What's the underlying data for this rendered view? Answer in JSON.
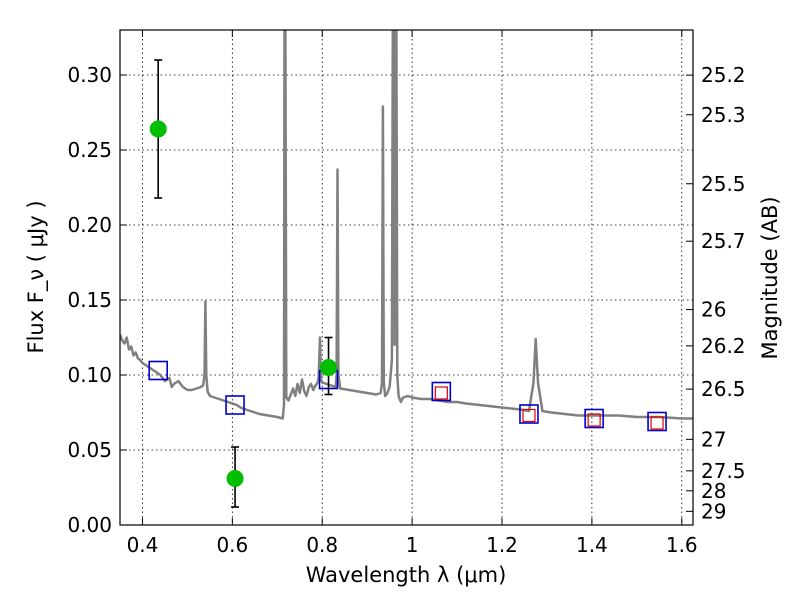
{
  "chart_data": {
    "type": "scatter",
    "xlabel": "Wavelength  λ (μm)",
    "ylabel": "Flux  F_ν  ( μJy )",
    "y2label": "Magnitude (AB)",
    "xlim": [
      0.35,
      1.625
    ],
    "ylim": [
      0.0,
      0.33
    ],
    "grid": true,
    "x_ticks": [
      0.4,
      0.6,
      0.8,
      1.0,
      1.2,
      1.4,
      1.6
    ],
    "x_tick_labels": [
      "0.4",
      "0.6",
      "0.8",
      "1",
      "1.2",
      "1.4",
      "1.6"
    ],
    "y_ticks": [
      0.0,
      0.05,
      0.1,
      0.15,
      0.2,
      0.25,
      0.3
    ],
    "y_tick_labels": [
      "0.00",
      "0.05",
      "0.10",
      "0.15",
      "0.20",
      "0.25",
      "0.30"
    ],
    "mag_ticks": [
      {
        "label": "25.2",
        "flux": 0.2999
      },
      {
        "label": "25.3",
        "flux": 0.2735
      },
      {
        "label": "25.5",
        "flux": 0.2275
      },
      {
        "label": "25.7",
        "flux": 0.1892
      },
      {
        "label": "26",
        "flux": 0.1436
      },
      {
        "label": "26.2",
        "flux": 0.1194
      },
      {
        "label": "26.5",
        "flux": 0.0906
      },
      {
        "label": "27",
        "flux": 0.0571
      },
      {
        "label": "27.5",
        "flux": 0.0361
      },
      {
        "label": "28",
        "flux": 0.0228
      },
      {
        "label": "29",
        "flux": 0.0091
      }
    ],
    "series": [
      {
        "kind": "sed-model-line",
        "color": "#808080",
        "points": [
          [
            0.35,
            0.127
          ],
          [
            0.355,
            0.123
          ],
          [
            0.36,
            0.121
          ],
          [
            0.365,
            0.125
          ],
          [
            0.37,
            0.117
          ],
          [
            0.375,
            0.119
          ],
          [
            0.38,
            0.113
          ],
          [
            0.385,
            0.115
          ],
          [
            0.39,
            0.111
          ],
          [
            0.395,
            0.11
          ],
          [
            0.4,
            0.108
          ],
          [
            0.41,
            0.106
          ],
          [
            0.42,
            0.104
          ],
          [
            0.43,
            0.102
          ],
          [
            0.44,
            0.1
          ],
          [
            0.45,
            0.096
          ],
          [
            0.46,
            0.098
          ],
          [
            0.465,
            0.092
          ],
          [
            0.47,
            0.094
          ],
          [
            0.48,
            0.096
          ],
          [
            0.49,
            0.092
          ],
          [
            0.5,
            0.09
          ],
          [
            0.51,
            0.09
          ],
          [
            0.52,
            0.091
          ],
          [
            0.53,
            0.092
          ],
          [
            0.535,
            0.093
          ],
          [
            0.538,
            0.1
          ],
          [
            0.54,
            0.149
          ],
          [
            0.542,
            0.1
          ],
          [
            0.545,
            0.089
          ],
          [
            0.55,
            0.086
          ],
          [
            0.56,
            0.085
          ],
          [
            0.57,
            0.084
          ],
          [
            0.58,
            0.083
          ],
          [
            0.59,
            0.082
          ],
          [
            0.6,
            0.081
          ],
          [
            0.61,
            0.08
          ],
          [
            0.62,
            0.078
          ],
          [
            0.64,
            0.076
          ],
          [
            0.66,
            0.074
          ],
          [
            0.68,
            0.073
          ],
          [
            0.7,
            0.072
          ],
          [
            0.712,
            0.071
          ],
          [
            0.715,
            0.08
          ],
          [
            0.716,
            0.33
          ],
          [
            0.718,
            0.33
          ],
          [
            0.72,
            0.085
          ],
          [
            0.725,
            0.083
          ],
          [
            0.73,
            0.087
          ],
          [
            0.735,
            0.091
          ],
          [
            0.74,
            0.086
          ],
          [
            0.745,
            0.094
          ],
          [
            0.75,
            0.088
          ],
          [
            0.755,
            0.097
          ],
          [
            0.76,
            0.089
          ],
          [
            0.765,
            0.086
          ],
          [
            0.77,
            0.092
          ],
          [
            0.775,
            0.094
          ],
          [
            0.78,
            0.09
          ],
          [
            0.785,
            0.093
          ],
          [
            0.79,
            0.095
          ],
          [
            0.792,
            0.098
          ],
          [
            0.795,
            0.125
          ],
          [
            0.797,
            0.097
          ],
          [
            0.8,
            0.095
          ],
          [
            0.81,
            0.094
          ],
          [
            0.82,
            0.093
          ],
          [
            0.83,
            0.092
          ],
          [
            0.832,
            0.1
          ],
          [
            0.834,
            0.237
          ],
          [
            0.836,
            0.1
          ],
          [
            0.84,
            0.091
          ],
          [
            0.86,
            0.09
          ],
          [
            0.88,
            0.089
          ],
          [
            0.9,
            0.088
          ],
          [
            0.92,
            0.087
          ],
          [
            0.93,
            0.088
          ],
          [
            0.933,
            0.095
          ],
          [
            0.935,
            0.279
          ],
          [
            0.937,
            0.095
          ],
          [
            0.94,
            0.086
          ],
          [
            0.945,
            0.088
          ],
          [
            0.95,
            0.092
          ],
          [
            0.955,
            0.11
          ],
          [
            0.957,
            0.33
          ],
          [
            0.959,
            0.33
          ],
          [
            0.961,
            0.12
          ],
          [
            0.963,
            0.33
          ],
          [
            0.965,
            0.33
          ],
          [
            0.967,
            0.1
          ],
          [
            0.97,
            0.086
          ],
          [
            0.975,
            0.082
          ],
          [
            0.98,
            0.085
          ],
          [
            0.99,
            0.086
          ],
          [
            1.0,
            0.085
          ],
          [
            1.02,
            0.084
          ],
          [
            1.04,
            0.084
          ],
          [
            1.06,
            0.083
          ],
          [
            1.08,
            0.082
          ],
          [
            1.1,
            0.082
          ],
          [
            1.12,
            0.081
          ],
          [
            1.15,
            0.08
          ],
          [
            1.18,
            0.079
          ],
          [
            1.21,
            0.078
          ],
          [
            1.24,
            0.077
          ],
          [
            1.26,
            0.076
          ],
          [
            1.27,
            0.095
          ],
          [
            1.275,
            0.124
          ],
          [
            1.28,
            0.095
          ],
          [
            1.29,
            0.076
          ],
          [
            1.31,
            0.075
          ],
          [
            1.34,
            0.074
          ],
          [
            1.37,
            0.073
          ],
          [
            1.4,
            0.073
          ],
          [
            1.43,
            0.073
          ],
          [
            1.46,
            0.073
          ],
          [
            1.5,
            0.072
          ],
          [
            1.55,
            0.072
          ],
          [
            1.6,
            0.071
          ],
          [
            1.625,
            0.071
          ]
        ]
      },
      {
        "kind": "observed-photometry",
        "color": "#00bf00",
        "points": [
          {
            "x": 0.435,
            "y": 0.264,
            "yerr_low": 0.218,
            "yerr_high": 0.31
          },
          {
            "x": 0.606,
            "y": 0.031,
            "yerr_low": 0.012,
            "yerr_high": 0.052
          },
          {
            "x": 0.814,
            "y": 0.105,
            "yerr_low": 0.087,
            "yerr_high": 0.125
          }
        ]
      },
      {
        "kind": "model-photometry-blue",
        "color": "#0000cc",
        "points": [
          {
            "x": 0.435,
            "y": 0.103
          },
          {
            "x": 0.606,
            "y": 0.08
          },
          {
            "x": 0.814,
            "y": 0.097
          },
          {
            "x": 1.065,
            "y": 0.089
          },
          {
            "x": 1.26,
            "y": 0.074
          },
          {
            "x": 1.405,
            "y": 0.071
          },
          {
            "x": 1.545,
            "y": 0.069
          }
        ]
      },
      {
        "kind": "model-photometry-red",
        "color": "#e00000",
        "points": [
          {
            "x": 1.065,
            "y": 0.088
          },
          {
            "x": 1.26,
            "y": 0.073
          },
          {
            "x": 1.405,
            "y": 0.07
          },
          {
            "x": 1.545,
            "y": 0.068
          }
        ]
      }
    ]
  }
}
